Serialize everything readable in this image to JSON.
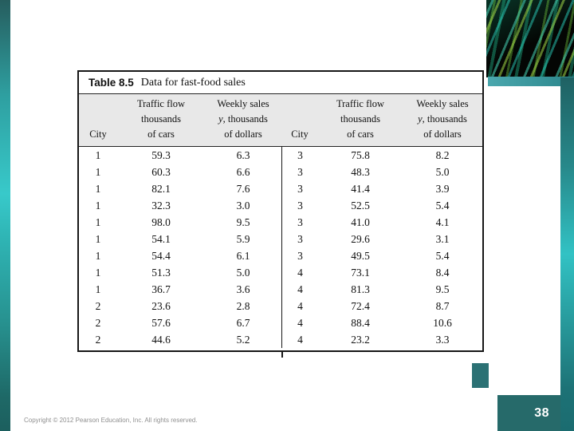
{
  "slide": {
    "page_number": "38",
    "copyright": "Copyright © 2012 Pearson Education, Inc. All rights reserved."
  },
  "colors": {
    "accent_teal_bright": "#38c9ca",
    "accent_teal_dark": "#266a6a",
    "table_header_bg": "#e8e8e8"
  },
  "table": {
    "label": "Table 8.5",
    "caption": "Data for fast-food sales",
    "headers": {
      "city": "City",
      "traffic_line1": "Traffic flow",
      "traffic_line2": "thousands",
      "traffic_line3": "of cars",
      "weekly_line1": "Weekly sales",
      "weekly_y": "y",
      "weekly_line2_rest": ", thousands",
      "weekly_line3": "of dollars"
    },
    "rows": [
      [
        "1",
        "59.3",
        "6.3",
        "3",
        "75.8",
        "8.2"
      ],
      [
        "1",
        "60.3",
        "6.6",
        "3",
        "48.3",
        "5.0"
      ],
      [
        "1",
        "82.1",
        "7.6",
        "3",
        "41.4",
        "3.9"
      ],
      [
        "1",
        "32.3",
        "3.0",
        "3",
        "52.5",
        "5.4"
      ],
      [
        "1",
        "98.0",
        "9.5",
        "3",
        "41.0",
        "4.1"
      ],
      [
        "1",
        "54.1",
        "5.9",
        "3",
        "29.6",
        "3.1"
      ],
      [
        "1",
        "54.4",
        "6.1",
        "3",
        "49.5",
        "5.4"
      ],
      [
        "1",
        "51.3",
        "5.0",
        "4",
        "73.1",
        "8.4"
      ],
      [
        "1",
        "36.7",
        "3.6",
        "4",
        "81.3",
        "9.5"
      ],
      [
        "2",
        "23.6",
        "2.8",
        "4",
        "72.4",
        "8.7"
      ],
      [
        "2",
        "57.6",
        "6.7",
        "4",
        "88.4",
        "10.6"
      ],
      [
        "2",
        "44.6",
        "5.2",
        "4",
        "23.2",
        "3.3"
      ]
    ]
  }
}
